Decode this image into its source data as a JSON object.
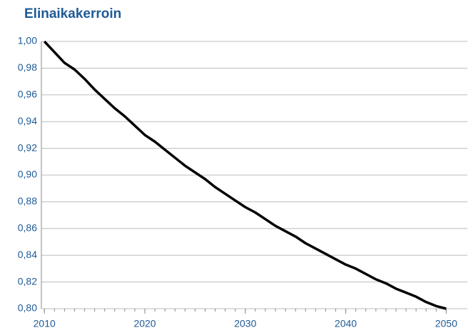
{
  "chart_data": {
    "type": "line",
    "title": "Elinaikakerroin",
    "x": [
      2010,
      2011,
      2012,
      2013,
      2014,
      2015,
      2016,
      2017,
      2018,
      2019,
      2020,
      2021,
      2022,
      2023,
      2024,
      2025,
      2026,
      2027,
      2028,
      2029,
      2030,
      2031,
      2032,
      2033,
      2034,
      2035,
      2036,
      2037,
      2038,
      2039,
      2040,
      2041,
      2042,
      2043,
      2044,
      2045,
      2046,
      2047,
      2048,
      2049,
      2050
    ],
    "series": [
      {
        "name": "Elinaikakerroin",
        "color": "#000000",
        "values": [
          1.0,
          0.992,
          0.984,
          0.979,
          0.972,
          0.964,
          0.957,
          0.95,
          0.944,
          0.937,
          0.93,
          0.925,
          0.919,
          0.913,
          0.907,
          0.902,
          0.897,
          0.891,
          0.886,
          0.881,
          0.876,
          0.872,
          0.867,
          0.862,
          0.858,
          0.854,
          0.849,
          0.845,
          0.841,
          0.837,
          0.833,
          0.83,
          0.826,
          0.822,
          0.819,
          0.815,
          0.812,
          0.809,
          0.805,
          0.802,
          0.8
        ]
      }
    ],
    "xlim": [
      2009.7,
      2052.1
    ],
    "xticks": [
      2010,
      2020,
      2030,
      2040,
      2050
    ],
    "ylim": [
      0.8,
      1.0
    ],
    "yticks": [
      {
        "value": 0.8,
        "label": "0,80"
      },
      {
        "value": 0.82,
        "label": "0,82"
      },
      {
        "value": 0.84,
        "label": "0,84"
      },
      {
        "value": 0.86,
        "label": "0,86"
      },
      {
        "value": 0.88,
        "label": "0,88"
      },
      {
        "value": 0.9,
        "label": "0,90"
      },
      {
        "value": 0.92,
        "label": "0,92"
      },
      {
        "value": 0.94,
        "label": "0,94"
      },
      {
        "value": 0.96,
        "label": "0,96"
      },
      {
        "value": 0.98,
        "label": "0,98"
      },
      {
        "value": 1.0,
        "label": "1,00"
      }
    ],
    "grid": true
  }
}
